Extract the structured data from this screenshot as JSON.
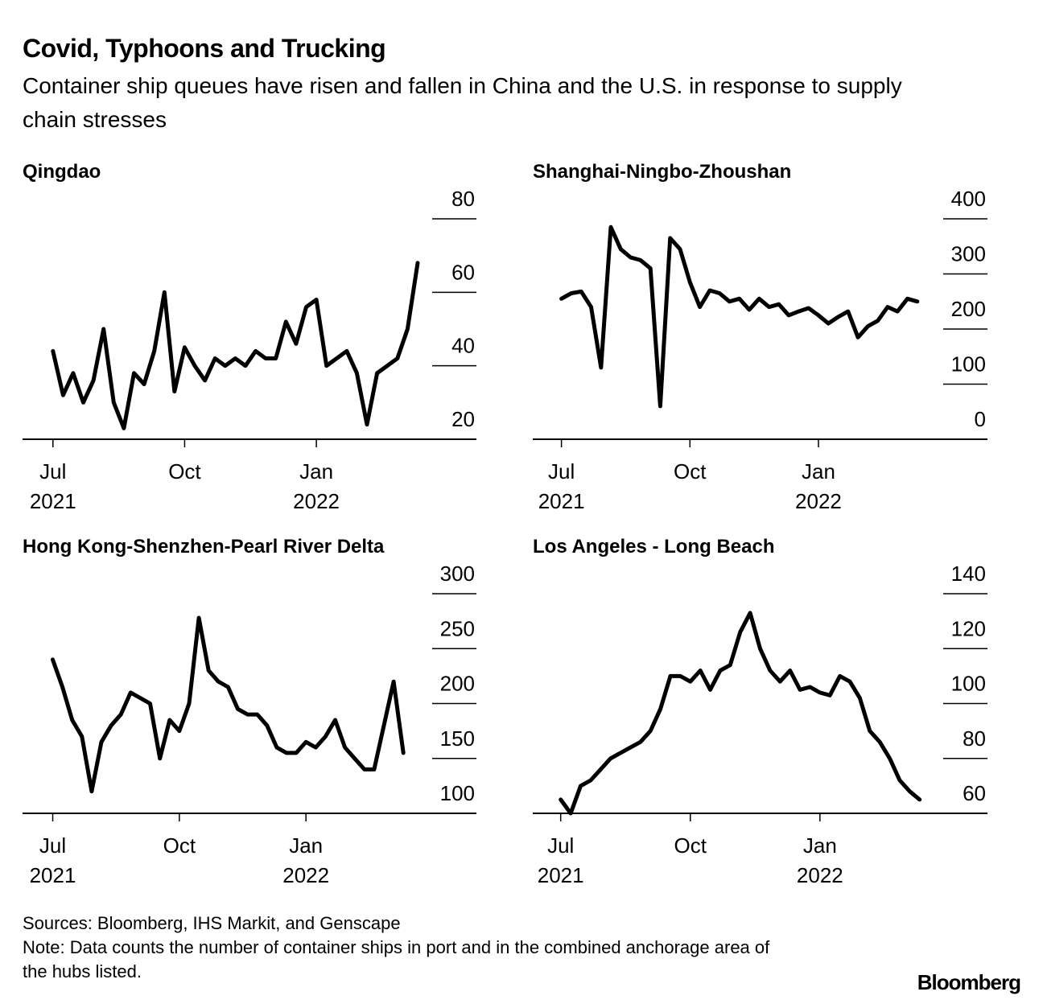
{
  "header": {
    "title": "Covid, Typhoons and Trucking",
    "subtitle": "Container ship queues have risen and fallen in China and the U.S. in response to supply chain stresses"
  },
  "footer": {
    "source": "Sources: Bloomberg, IHS Markit, and Genscape",
    "note": "Note: Data counts the number of container ships in port and in the combined anchorage area of the hubs listed.",
    "logo": "Bloomberg"
  },
  "chart_data": [
    {
      "type": "line",
      "title": "Qingdao",
      "color": "#000000",
      "x": [
        0,
        1,
        2,
        3,
        4,
        5,
        6,
        7,
        8,
        9,
        10,
        11,
        12,
        13,
        14,
        15,
        16,
        17,
        18,
        19,
        20,
        21,
        22,
        23,
        24,
        25,
        26,
        27,
        28,
        29,
        30,
        31,
        32,
        33,
        34,
        35,
        36
      ],
      "values": [
        44,
        32,
        38,
        30,
        36,
        50,
        30,
        23,
        38,
        35,
        44,
        60,
        33,
        45,
        40,
        36,
        42,
        40,
        42,
        40,
        44,
        42,
        42,
        52,
        46,
        56,
        58,
        40,
        42,
        44,
        38,
        24,
        38,
        40,
        42,
        50,
        68
      ],
      "xlim": [
        -3,
        41.8
      ],
      "xticks": [
        {
          "value": 0,
          "label": "Jul\n2021"
        },
        {
          "value": 13,
          "label": "Oct"
        },
        {
          "value": 26,
          "label": "Jan\n2022"
        }
      ],
      "ylim": [
        20,
        80
      ],
      "yticks": [
        20,
        40,
        60,
        80
      ]
    },
    {
      "type": "line",
      "title": "Shanghai-Ningbo-Zhoushan",
      "color": "#000000",
      "x": [
        0,
        1,
        2,
        3,
        4,
        5,
        6,
        7,
        8,
        9,
        10,
        11,
        12,
        13,
        14,
        15,
        16,
        17,
        18,
        19,
        20,
        21,
        22,
        23,
        24,
        25,
        26,
        27,
        28,
        29,
        30,
        31,
        32,
        33,
        34,
        35,
        36
      ],
      "values": [
        255,
        265,
        268,
        240,
        130,
        385,
        345,
        330,
        325,
        310,
        60,
        365,
        345,
        285,
        240,
        270,
        265,
        250,
        255,
        235,
        255,
        240,
        245,
        225,
        232,
        238,
        225,
        210,
        222,
        232,
        185,
        205,
        215,
        240,
        232,
        255,
        250
      ],
      "xlim": [
        -2.9,
        43.1
      ],
      "xticks": [
        {
          "value": 0,
          "label": "Jul\n2021"
        },
        {
          "value": 13,
          "label": "Oct"
        },
        {
          "value": 26,
          "label": "Jan\n2022"
        }
      ],
      "ylim": [
        0,
        400
      ],
      "yticks": [
        0,
        100,
        200,
        300,
        400
      ]
    },
    {
      "type": "line",
      "title": "Hong Kong-Shenzhen-Pearl River Delta",
      "color": "#000000",
      "x": [
        0,
        1,
        2,
        3,
        4,
        5,
        6,
        7,
        8,
        9,
        10,
        11,
        12,
        13,
        14,
        15,
        16,
        17,
        18,
        19,
        20,
        21,
        22,
        23,
        24,
        25,
        26,
        27,
        28,
        29,
        30,
        31,
        32,
        33,
        34,
        35,
        36
      ],
      "values": [
        240,
        215,
        185,
        170,
        120,
        165,
        180,
        190,
        210,
        205,
        200,
        150,
        185,
        175,
        200,
        278,
        230,
        220,
        215,
        195,
        190,
        190,
        180,
        160,
        155,
        155,
        165,
        160,
        170,
        185,
        160,
        150,
        140,
        140,
        180,
        220,
        155
      ],
      "xlim": [
        -3.1,
        43.5
      ],
      "xticks": [
        {
          "value": 0,
          "label": "Jul\n2021"
        },
        {
          "value": 13,
          "label": "Oct"
        },
        {
          "value": 26,
          "label": "Jan\n2022"
        }
      ],
      "ylim": [
        100,
        300
      ],
      "yticks": [
        100,
        150,
        200,
        250,
        300
      ]
    },
    {
      "type": "line",
      "title": "Los Angeles - Long Beach",
      "color": "#000000",
      "x": [
        0,
        1,
        2,
        3,
        4,
        5,
        6,
        7,
        8,
        9,
        10,
        11,
        12,
        13,
        14,
        15,
        16,
        17,
        18,
        19,
        20,
        21,
        22,
        23,
        24,
        25,
        26,
        27,
        28,
        29,
        30,
        31,
        32,
        33,
        34,
        35,
        36
      ],
      "values": [
        65,
        60,
        70,
        72,
        76,
        80,
        82,
        84,
        86,
        90,
        98,
        110,
        110,
        108,
        112,
        105,
        112,
        114,
        126,
        133,
        120,
        112,
        108,
        112,
        105,
        106,
        104,
        103,
        110,
        108,
        102,
        90,
        86,
        80,
        72,
        68,
        65
      ],
      "xlim": [
        -2.8,
        42.8
      ],
      "xticks": [
        {
          "value": 0,
          "label": "Jul\n2021"
        },
        {
          "value": 13,
          "label": "Oct"
        },
        {
          "value": 26,
          "label": "Jan\n2022"
        }
      ],
      "ylim": [
        60,
        140
      ],
      "yticks": [
        60,
        80,
        100,
        120,
        140
      ]
    }
  ]
}
